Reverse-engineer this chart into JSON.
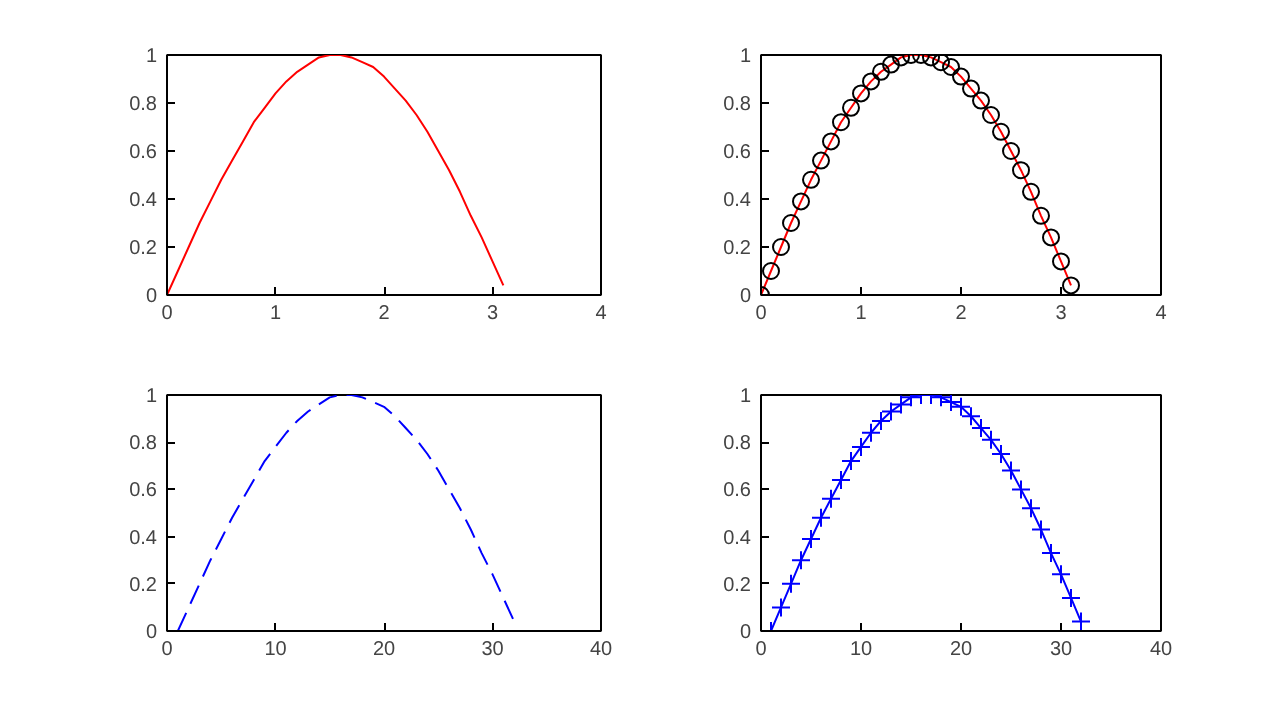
{
  "chart_data": [
    {
      "type": "line",
      "x": [
        0,
        0.1,
        0.2,
        0.3,
        0.4,
        0.5,
        0.6,
        0.7,
        0.8,
        0.9,
        1.0,
        1.1,
        1.2,
        1.3,
        1.4,
        1.5,
        1.6,
        1.7,
        1.8,
        1.9,
        2.0,
        2.1,
        2.2,
        2.3,
        2.4,
        2.5,
        2.6,
        2.7,
        2.8,
        2.9,
        3.0,
        3.1
      ],
      "series": [
        {
          "color": "#ff0000",
          "values": [
            0,
            0.1,
            0.2,
            0.3,
            0.39,
            0.48,
            0.56,
            0.64,
            0.72,
            0.78,
            0.84,
            0.89,
            0.93,
            0.96,
            0.99,
            1.0,
            1.0,
            0.99,
            0.97,
            0.95,
            0.91,
            0.86,
            0.81,
            0.75,
            0.68,
            0.6,
            0.52,
            0.43,
            0.33,
            0.24,
            0.14,
            0.04
          ]
        }
      ],
      "xlim": [
        0,
        4
      ],
      "xticks": [
        0,
        1,
        2,
        3,
        4
      ],
      "ylim": [
        0,
        1
      ],
      "yticks": [
        0,
        0.2,
        0.4,
        0.6,
        0.8,
        1
      ],
      "grid": false,
      "line_style": "solid"
    },
    {
      "type": "line",
      "x": [
        0,
        0.1,
        0.2,
        0.3,
        0.4,
        0.5,
        0.6,
        0.7,
        0.8,
        0.9,
        1.0,
        1.1,
        1.2,
        1.3,
        1.4,
        1.5,
        1.6,
        1.7,
        1.8,
        1.9,
        2.0,
        2.1,
        2.2,
        2.3,
        2.4,
        2.5,
        2.6,
        2.7,
        2.8,
        2.9,
        3.0,
        3.1
      ],
      "series": [
        {
          "color": "#ff0000",
          "values": [
            0,
            0.1,
            0.2,
            0.3,
            0.39,
            0.48,
            0.56,
            0.64,
            0.72,
            0.78,
            0.84,
            0.89,
            0.93,
            0.96,
            0.99,
            1.0,
            1.0,
            0.99,
            0.97,
            0.95,
            0.91,
            0.86,
            0.81,
            0.75,
            0.68,
            0.6,
            0.52,
            0.43,
            0.33,
            0.24,
            0.14,
            0.04
          ]
        },
        {
          "type": "scatter",
          "marker": "circle",
          "color": "#000000",
          "values": [
            0,
            0.1,
            0.2,
            0.3,
            0.39,
            0.48,
            0.56,
            0.64,
            0.72,
            0.78,
            0.84,
            0.89,
            0.93,
            0.96,
            0.99,
            1.0,
            1.0,
            0.99,
            0.97,
            0.95,
            0.91,
            0.86,
            0.81,
            0.75,
            0.68,
            0.6,
            0.52,
            0.43,
            0.33,
            0.24,
            0.14,
            0.04
          ]
        }
      ],
      "xlim": [
        0,
        4
      ],
      "xticks": [
        0,
        1,
        2,
        3,
        4
      ],
      "ylim": [
        0,
        1
      ],
      "yticks": [
        0,
        0.2,
        0.4,
        0.6,
        0.8,
        1
      ],
      "grid": false,
      "line_style": "solid"
    },
    {
      "type": "line",
      "x": [
        1,
        2,
        3,
        4,
        5,
        6,
        7,
        8,
        9,
        10,
        11,
        12,
        13,
        14,
        15,
        16,
        17,
        18,
        19,
        20,
        21,
        22,
        23,
        24,
        25,
        26,
        27,
        28,
        29,
        30,
        31,
        32
      ],
      "series": [
        {
          "color": "#0000ff",
          "values": [
            0,
            0.1,
            0.2,
            0.3,
            0.39,
            0.48,
            0.56,
            0.64,
            0.72,
            0.78,
            0.84,
            0.89,
            0.93,
            0.96,
            0.99,
            1.0,
            1.0,
            0.99,
            0.97,
            0.95,
            0.91,
            0.86,
            0.81,
            0.75,
            0.68,
            0.6,
            0.52,
            0.43,
            0.33,
            0.24,
            0.14,
            0.04
          ]
        }
      ],
      "xlim": [
        0,
        40
      ],
      "xticks": [
        0,
        10,
        20,
        30,
        40
      ],
      "ylim": [
        0,
        1
      ],
      "yticks": [
        0,
        0.2,
        0.4,
        0.6,
        0.8,
        1
      ],
      "grid": false,
      "line_style": "dashed"
    },
    {
      "type": "line",
      "x": [
        1,
        2,
        3,
        4,
        5,
        6,
        7,
        8,
        9,
        10,
        11,
        12,
        13,
        14,
        15,
        16,
        17,
        18,
        19,
        20,
        21,
        22,
        23,
        24,
        25,
        26,
        27,
        28,
        29,
        30,
        31,
        32
      ],
      "series": [
        {
          "color": "#0000ff",
          "values": [
            0,
            0.1,
            0.2,
            0.3,
            0.39,
            0.48,
            0.56,
            0.64,
            0.72,
            0.78,
            0.84,
            0.89,
            0.93,
            0.96,
            0.99,
            1.0,
            1.0,
            0.99,
            0.97,
            0.95,
            0.91,
            0.86,
            0.81,
            0.75,
            0.68,
            0.6,
            0.52,
            0.43,
            0.33,
            0.24,
            0.14,
            0.04
          ]
        }
      ],
      "xlim": [
        0,
        40
      ],
      "xticks": [
        0,
        10,
        20,
        30,
        40
      ],
      "ylim": [
        0,
        1
      ],
      "yticks": [
        0,
        0.2,
        0.4,
        0.6,
        0.8,
        1
      ],
      "grid": false,
      "line_style": "solid",
      "marker": "cross"
    }
  ]
}
